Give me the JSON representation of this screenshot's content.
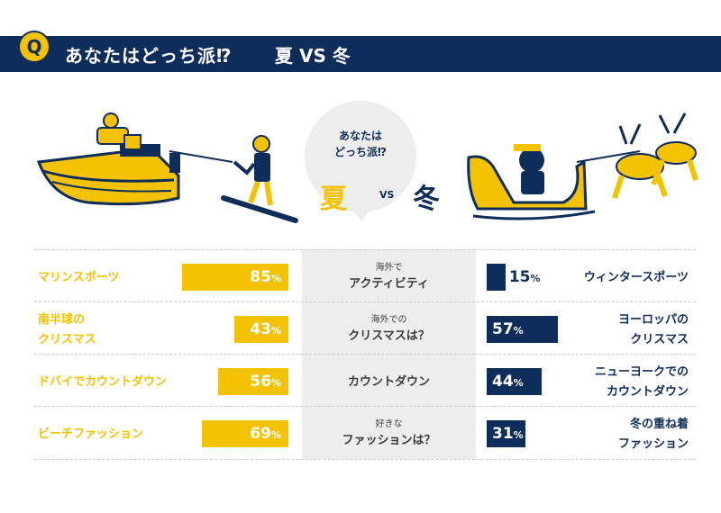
{
  "header": {
    "badge": "Q",
    "title": "あなたはどっち派⁉",
    "subtitle": "夏 VS 冬"
  },
  "bubble": {
    "line1": "あなたは",
    "line2": "どっち派⁉",
    "summer": "夏",
    "vs": "VS",
    "winter": "冬"
  },
  "colors": {
    "summer": "#f5c200",
    "winter": "#0f2d5a",
    "center_bg": "#ededed"
  },
  "chart_data": {
    "type": "bar",
    "unit": "%",
    "series": [
      {
        "name": "夏",
        "values": [
          85,
          43,
          56,
          69
        ]
      },
      {
        "name": "冬",
        "values": [
          15,
          57,
          44,
          31
        ]
      }
    ],
    "categories": [
      {
        "center_small": "海外で",
        "center_big": "アクティビティ",
        "summer_label": [
          "マリンスポーツ"
        ],
        "winter_label": [
          "ウィンタースポーツ"
        ]
      },
      {
        "center_small": "海外での",
        "center_big": "クリスマスは？",
        "summer_label": [
          "南半球の",
          "クリスマス"
        ],
        "winter_label": [
          "ヨーロッパの",
          "クリスマス"
        ]
      },
      {
        "center_small": "",
        "center_big": "カウントダウン",
        "summer_label": [
          "ドバイでカウントダウン"
        ],
        "winter_label": [
          "ニューヨークでの",
          "カウントダウン"
        ]
      },
      {
        "center_small": "好きな",
        "center_big": "ファッションは？",
        "summer_label": [
          "ビーチファッション"
        ],
        "winter_label": [
          "冬の重ね着",
          "ファッション"
        ]
      }
    ]
  }
}
